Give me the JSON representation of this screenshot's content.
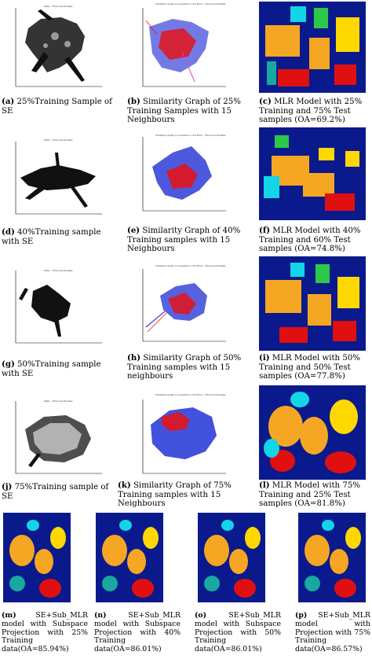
{
  "figure": {
    "panels": [
      {
        "tag": "(a)",
        "caption": "25%Training Sample of SE",
        "plot_title": "Data - Time Coordinates"
      },
      {
        "tag": "(b)",
        "caption": "Similarity Graph of 25% Training Samples with 15 Neighbours",
        "plot_title": "Similarity Graph (connected in 3rd Dim) - Time Coordinates"
      },
      {
        "tag": "(c)",
        "caption": "MLR Model with 25% Training and 75% Test samples (OA=69.2%)"
      },
      {
        "tag": "(d)",
        "caption": "40%Training sample with SE",
        "plot_title": "Data - Time Coordinates"
      },
      {
        "tag": "(e)",
        "caption": "Similarity Graph of 40% Training samples with 15 Neighbours",
        "plot_title": "Similarity Graph (connected in 3rd Dim) - Time Coordinates"
      },
      {
        "tag": "(f)",
        "caption": "MLR Model with 40% Training and 60% Test samples (OA=74.8%)"
      },
      {
        "tag": "(g)",
        "caption": "50%Training sample with SE",
        "plot_title": "Data - Time Coordinates"
      },
      {
        "tag": "(h)",
        "caption": "Similarity Graph of 50% Training samples with 15 neighbours",
        "plot_title": "Similarity Graph (connected in 3rd Dim) - Time Coordinates"
      },
      {
        "tag": "(i)",
        "caption": "MLR Model with 50% Training and 50% Test samples (OA=77.8%)"
      },
      {
        "tag": "(j)",
        "caption": "75%Training sample of SE",
        "plot_title": "Data - Time Coordinates"
      },
      {
        "tag": "(k)",
        "caption": "Similarity Graph of 75% Training samples with 15 Neighbours",
        "plot_title": "Similarity Graph (connected in 3rd Dim) - Time Coordinates"
      },
      {
        "tag": "(l)",
        "caption": "MLR Model with 75% Training and 25% Test samples (OA=81.8%)"
      },
      {
        "tag": "(m)",
        "caption": "SE+Sub_MLR model with Subspace Projection with 25% Training data(OA=85.94%)"
      },
      {
        "tag": "(n)",
        "caption": "SE+Sub_MLR model with Subspace Projection with 40% Training data(OA=86.01%)"
      },
      {
        "tag": "(o)",
        "caption": "SE+Sub_MLR model with Subspace Projection with 50% Training data(OA=86.01%)"
      },
      {
        "tag": "(p)",
        "caption": "SE+Sub_MLR model with Projection with 75% Training data(OA=86.57%)"
      }
    ]
  },
  "colors": {
    "map_bg": "#0a1a8c",
    "graph_edges": "#2f3fd8",
    "graph_nodes": "#e3141b",
    "orange": "#f5a623",
    "yellow": "#ffd800",
    "cyan": "#14d4e8",
    "red": "#e01010",
    "teal": "#18a8a0",
    "green": "#2cc84a"
  }
}
